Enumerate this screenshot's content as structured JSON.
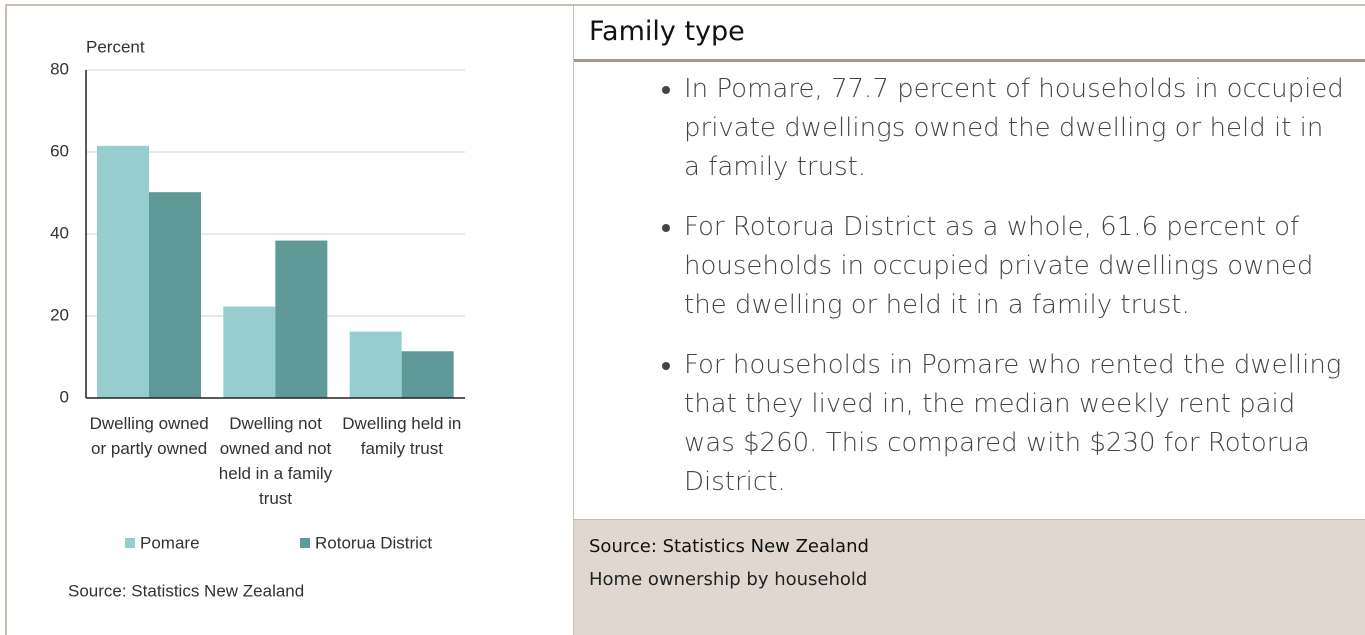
{
  "chart_data": {
    "type": "bar",
    "ylabel": "Percent",
    "categories": [
      "Dwelling owned or partly owned",
      "Dwelling not owned and not held in a family trust",
      "Dwelling held in family trust"
    ],
    "series": [
      {
        "name": "Pomare",
        "color": "#96cdcd",
        "values": [
          61.5,
          22.3,
          16.2
        ]
      },
      {
        "name": "Rotorua District",
        "color": "#5f9a98",
        "values": [
          50.2,
          38.4,
          11.4
        ]
      }
    ],
    "ylim": [
      0,
      80
    ],
    "yticks": [
      0,
      20,
      40,
      60,
      80
    ],
    "grid": true,
    "note": "Source: Statistics New Zealand"
  },
  "panel": {
    "title": "Family type",
    "bullets": [
      "In Pomare, 77.7 percent of households in occupied private dwellings owned the dwelling or held it in a family trust.",
      "For Rotorua District as a whole, 61.6 percent of households in occupied private dwellings owned the dwelling or held it in a family trust.",
      "For households in Pomare who rented the dwelling that they lived in, the median weekly rent paid was $260. This compared with $230 for Rotorua District."
    ],
    "source": "Source: Statistics New Zealand",
    "caption": "Home ownership by household"
  }
}
